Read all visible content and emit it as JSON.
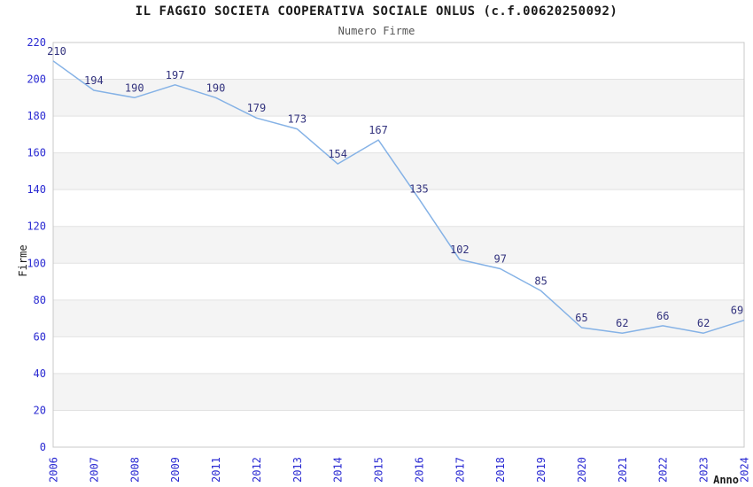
{
  "chart_data": {
    "type": "line",
    "title": "IL FAGGIO SOCIETA COOPERATIVA SOCIALE ONLUS (c.f.00620250092)",
    "subtitle": "Numero Firme",
    "xlabel": "Anno",
    "ylabel": "Firme",
    "categories": [
      "2006",
      "2007",
      "2008",
      "2009",
      "2011",
      "2012",
      "2013",
      "2014",
      "2015",
      "2016",
      "2017",
      "2018",
      "2019",
      "2020",
      "2021",
      "2022",
      "2023",
      "2024"
    ],
    "values": [
      210,
      194,
      190,
      197,
      190,
      179,
      173,
      154,
      167,
      135,
      102,
      97,
      85,
      65,
      62,
      66,
      62,
      69
    ],
    "ylim": [
      0,
      220
    ],
    "ytick_step": 20,
    "yticks": [
      0,
      20,
      40,
      60,
      80,
      100,
      120,
      140,
      160,
      180,
      200,
      220
    ],
    "grid": true,
    "banded_background": true,
    "legend": "none",
    "data_labels": true
  },
  "colors": {
    "line": "#85b2e6",
    "band": "#f4f4f4",
    "grid": "#e2e2e2",
    "plot_border": "#c8c8c8",
    "tick_label": "#2a2ad2",
    "data_label": "#33337e",
    "axis_name": "#1a1a1a",
    "title": "#1a1a1a",
    "subtitle": "#555555",
    "background": "#ffffff"
  }
}
